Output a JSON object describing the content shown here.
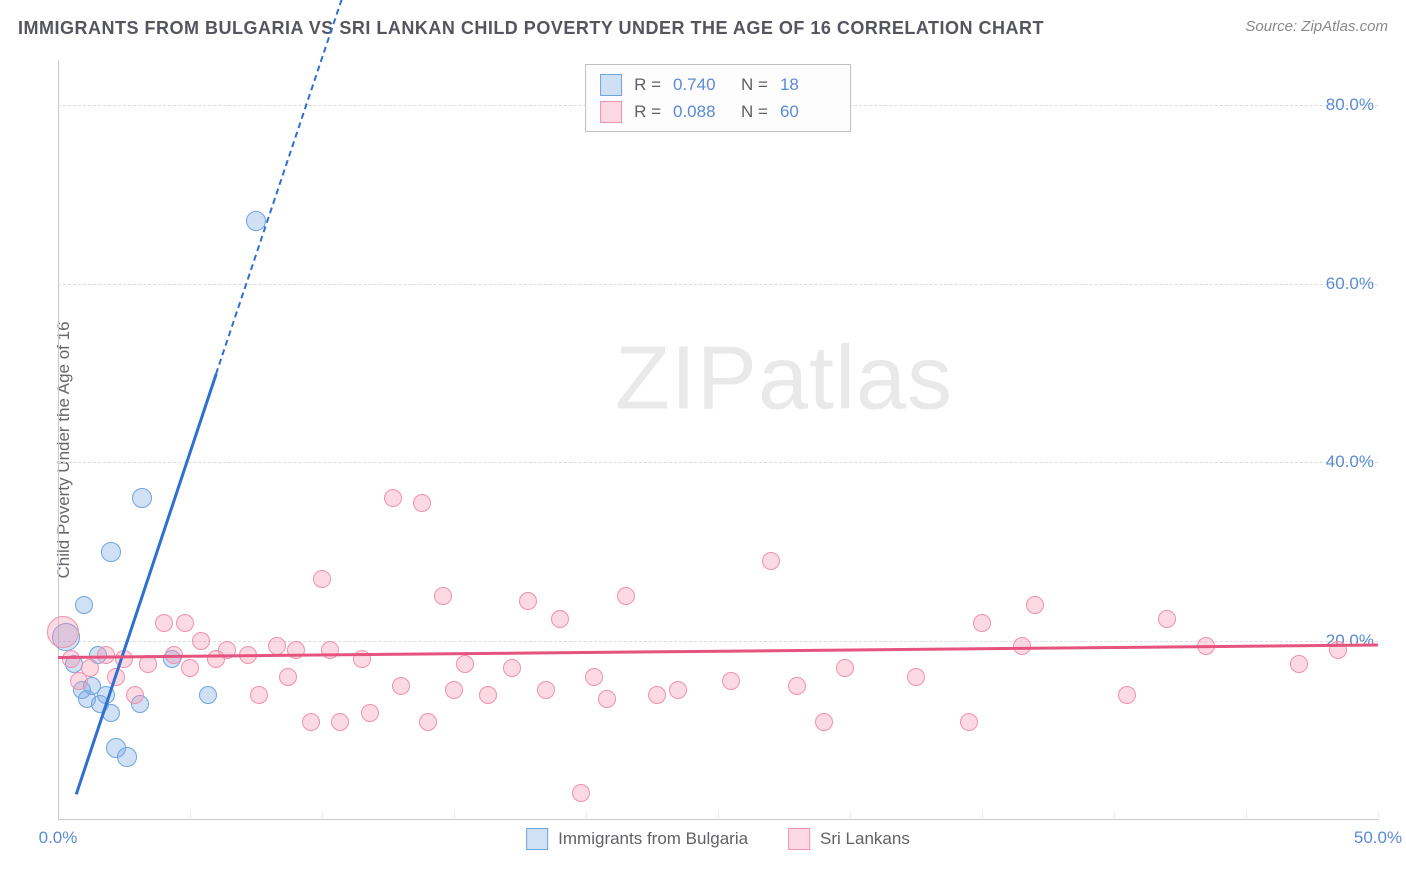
{
  "header": {
    "title": "IMMIGRANTS FROM BULGARIA VS SRI LANKAN CHILD POVERTY UNDER THE AGE OF 16 CORRELATION CHART",
    "source_label": "Source: ",
    "source_name": "ZipAtlas.com"
  },
  "watermark": {
    "part1": "ZIP",
    "part2": "atlas"
  },
  "chart": {
    "type": "scatter",
    "y_axis_label": "Child Poverty Under the Age of 16",
    "xlim": [
      0,
      50
    ],
    "ylim": [
      0,
      85
    ],
    "x_ticks": [
      0,
      5,
      10,
      15,
      20,
      25,
      30,
      35,
      40,
      45,
      50
    ],
    "x_tick_labels": {
      "0": "0.0%",
      "50": "50.0%"
    },
    "y_ticks": [
      20,
      40,
      60,
      80
    ],
    "y_tick_labels": {
      "20": "20.0%",
      "40": "40.0%",
      "60": "60.0%",
      "80": "80.0%"
    },
    "grid_color_h": "#dcdcdc",
    "tick_label_color": "#5b8bd4",
    "background_color": "#ffffff",
    "series": [
      {
        "name": "Immigrants from Bulgaria",
        "fill_color": "rgba(120,170,230,0.35)",
        "stroke_color": "#6fa4dd",
        "trend_color": "#2e6fd0",
        "R_value": "0.740",
        "N_value": "18",
        "trend": {
          "x0": 0.7,
          "y0": 3,
          "x1": 6,
          "y1": 50,
          "dash_to_x": 11,
          "dash_to_y": 94
        },
        "points": [
          {
            "x": 0.3,
            "y": 20.5,
            "r": 14
          },
          {
            "x": 0.6,
            "y": 17.5,
            "r": 9
          },
          {
            "x": 0.9,
            "y": 14.5,
            "r": 9
          },
          {
            "x": 1.1,
            "y": 13.5,
            "r": 9
          },
          {
            "x": 1.3,
            "y": 15,
            "r": 9
          },
          {
            "x": 1.6,
            "y": 13,
            "r": 9
          },
          {
            "x": 1.8,
            "y": 14,
            "r": 9
          },
          {
            "x": 2.0,
            "y": 12,
            "r": 9
          },
          {
            "x": 1.0,
            "y": 24,
            "r": 9
          },
          {
            "x": 1.5,
            "y": 18.5,
            "r": 9
          },
          {
            "x": 2.2,
            "y": 8,
            "r": 10
          },
          {
            "x": 2.6,
            "y": 7,
            "r": 10
          },
          {
            "x": 2.0,
            "y": 30,
            "r": 10
          },
          {
            "x": 3.1,
            "y": 13,
            "r": 9
          },
          {
            "x": 3.2,
            "y": 36,
            "r": 10
          },
          {
            "x": 4.3,
            "y": 18,
            "r": 9
          },
          {
            "x": 5.7,
            "y": 14,
            "r": 9
          },
          {
            "x": 7.5,
            "y": 67,
            "r": 10
          }
        ]
      },
      {
        "name": "Sri Lankans",
        "fill_color": "rgba(245,150,175,0.35)",
        "stroke_color": "#f191ac",
        "trend_color": "#e6537e",
        "R_value": "0.088",
        "N_value": "60",
        "trend": {
          "x0": 0,
          "y0": 18.3,
          "x1": 50,
          "y1": 19.7
        },
        "points": [
          {
            "x": 0.2,
            "y": 21,
            "r": 16
          },
          {
            "x": 0.5,
            "y": 18,
            "r": 9
          },
          {
            "x": 0.8,
            "y": 15.5,
            "r": 9
          },
          {
            "x": 1.2,
            "y": 17,
            "r": 9
          },
          {
            "x": 1.8,
            "y": 18.5,
            "r": 9
          },
          {
            "x": 2.2,
            "y": 16,
            "r": 9
          },
          {
            "x": 2.9,
            "y": 14,
            "r": 9
          },
          {
            "x": 2.5,
            "y": 18,
            "r": 9
          },
          {
            "x": 3.4,
            "y": 17.5,
            "r": 9
          },
          {
            "x": 4.0,
            "y": 22,
            "r": 9
          },
          {
            "x": 4.4,
            "y": 18.5,
            "r": 9
          },
          {
            "x": 4.8,
            "y": 22,
            "r": 9
          },
          {
            "x": 5.0,
            "y": 17,
            "r": 9
          },
          {
            "x": 5.4,
            "y": 20,
            "r": 9
          },
          {
            "x": 6.0,
            "y": 18,
            "r": 9
          },
          {
            "x": 6.4,
            "y": 19,
            "r": 9
          },
          {
            "x": 7.2,
            "y": 18.5,
            "r": 9
          },
          {
            "x": 7.6,
            "y": 14,
            "r": 9
          },
          {
            "x": 8.3,
            "y": 19.5,
            "r": 9
          },
          {
            "x": 8.7,
            "y": 16,
            "r": 9
          },
          {
            "x": 9.0,
            "y": 19,
            "r": 9
          },
          {
            "x": 9.6,
            "y": 11,
            "r": 9
          },
          {
            "x": 10.0,
            "y": 27,
            "r": 9
          },
          {
            "x": 10.3,
            "y": 19,
            "r": 9
          },
          {
            "x": 10.7,
            "y": 11,
            "r": 9
          },
          {
            "x": 11.5,
            "y": 18,
            "r": 9
          },
          {
            "x": 11.8,
            "y": 12,
            "r": 9
          },
          {
            "x": 12.7,
            "y": 36,
            "r": 9
          },
          {
            "x": 13.0,
            "y": 15,
            "r": 9
          },
          {
            "x": 13.8,
            "y": 35.5,
            "r": 9
          },
          {
            "x": 14.0,
            "y": 11,
            "r": 9
          },
          {
            "x": 14.6,
            "y": 25,
            "r": 9
          },
          {
            "x": 15.0,
            "y": 14.5,
            "r": 9
          },
          {
            "x": 15.4,
            "y": 17.5,
            "r": 9
          },
          {
            "x": 16.3,
            "y": 14,
            "r": 9
          },
          {
            "x": 17.2,
            "y": 17,
            "r": 9
          },
          {
            "x": 17.8,
            "y": 24.5,
            "r": 9
          },
          {
            "x": 18.5,
            "y": 14.5,
            "r": 9
          },
          {
            "x": 19.0,
            "y": 22.5,
            "r": 9
          },
          {
            "x": 19.8,
            "y": 3,
            "r": 9
          },
          {
            "x": 20.3,
            "y": 16,
            "r": 9
          },
          {
            "x": 20.8,
            "y": 13.5,
            "r": 9
          },
          {
            "x": 21.5,
            "y": 25,
            "r": 9
          },
          {
            "x": 22.7,
            "y": 14,
            "r": 9
          },
          {
            "x": 23.5,
            "y": 14.5,
            "r": 9
          },
          {
            "x": 25.5,
            "y": 15.5,
            "r": 9
          },
          {
            "x": 27.0,
            "y": 29,
            "r": 9
          },
          {
            "x": 28.0,
            "y": 15,
            "r": 9
          },
          {
            "x": 29.0,
            "y": 11,
            "r": 9
          },
          {
            "x": 29.8,
            "y": 17,
            "r": 9
          },
          {
            "x": 32.5,
            "y": 16,
            "r": 9
          },
          {
            "x": 34.5,
            "y": 11,
            "r": 9
          },
          {
            "x": 35.0,
            "y": 22,
            "r": 9
          },
          {
            "x": 36.5,
            "y": 19.5,
            "r": 9
          },
          {
            "x": 37.0,
            "y": 24,
            "r": 9
          },
          {
            "x": 40.5,
            "y": 14,
            "r": 9
          },
          {
            "x": 42.0,
            "y": 22.5,
            "r": 9
          },
          {
            "x": 43.5,
            "y": 19.5,
            "r": 9
          },
          {
            "x": 47.0,
            "y": 17.5,
            "r": 9
          },
          {
            "x": 48.5,
            "y": 19,
            "r": 9
          }
        ]
      }
    ]
  },
  "legend_stats": {
    "r_label": "R =",
    "n_label": "N ="
  }
}
